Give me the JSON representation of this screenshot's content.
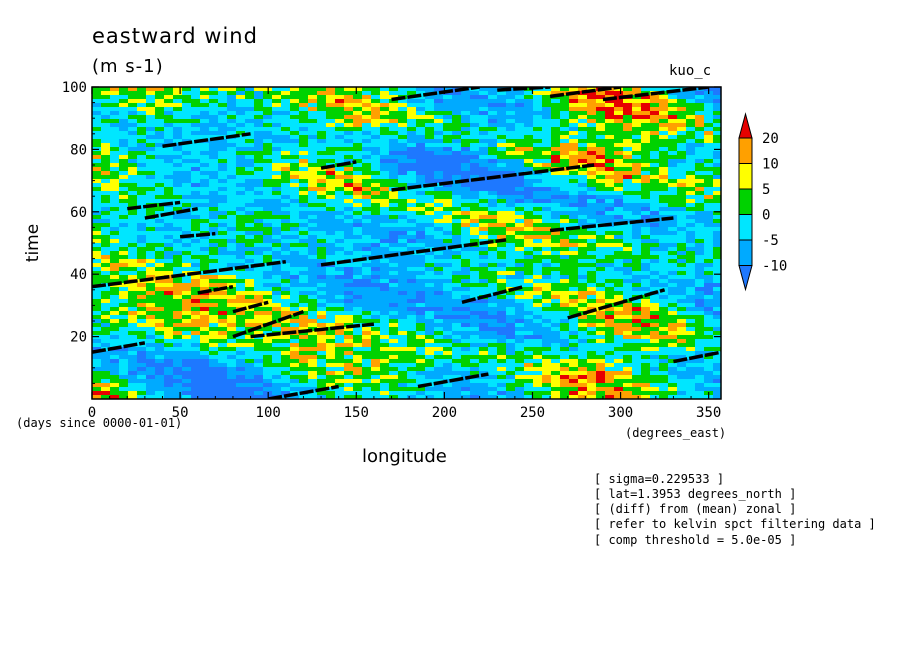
{
  "chart_data": {
    "type": "heatmap",
    "title": "eastward wind",
    "units": "(m s-1)",
    "model": "kuo_c",
    "xlabel": "longitude",
    "ylabel": "time",
    "x_units": "(degrees_east)",
    "time_units": "(days since 0000-01-01)",
    "xlim": [
      0,
      357
    ],
    "ylim": [
      0,
      100
    ],
    "x_ticks": [
      0,
      50,
      100,
      150,
      200,
      250,
      300,
      350
    ],
    "y_ticks": [
      20,
      40,
      60,
      80,
      100
    ],
    "colorbar": {
      "levels": [
        -10,
        -5,
        0,
        5,
        10,
        20
      ],
      "colors": [
        "#1e78ff",
        "#00aaff",
        "#00e6ff",
        "#00d200",
        "#ffff00",
        "#ffa000",
        "#e60000"
      ]
    },
    "overlay_segments": [
      [
        [
          0,
          15
        ],
        [
          30,
          18
        ]
      ],
      [
        [
          90,
          20
        ],
        [
          160,
          24
        ]
      ],
      [
        [
          100,
          0
        ],
        [
          140,
          4
        ]
      ],
      [
        [
          210,
          31
        ],
        [
          245,
          36
        ]
      ],
      [
        [
          185,
          4
        ],
        [
          225,
          8
        ]
      ],
      [
        [
          270,
          26
        ],
        [
          325,
          35
        ]
      ],
      [
        [
          330,
          12
        ],
        [
          357,
          15
        ]
      ],
      [
        [
          0,
          36
        ],
        [
          110,
          44
        ]
      ],
      [
        [
          130,
          43
        ],
        [
          235,
          51
        ]
      ],
      [
        [
          170,
          67
        ],
        [
          285,
          75
        ]
      ],
      [
        [
          260,
          54
        ],
        [
          330,
          58
        ]
      ],
      [
        [
          20,
          61
        ],
        [
          50,
          63
        ]
      ],
      [
        [
          40,
          81
        ],
        [
          90,
          85
        ]
      ],
      [
        [
          130,
          74
        ],
        [
          150,
          76
        ]
      ],
      [
        [
          170,
          96
        ],
        [
          220,
          100
        ]
      ],
      [
        [
          260,
          97
        ],
        [
          300,
          100
        ]
      ],
      [
        [
          290,
          96
        ],
        [
          350,
          100
        ]
      ],
      [
        [
          80,
          20
        ],
        [
          120,
          28
        ]
      ],
      [
        [
          50,
          52
        ],
        [
          70,
          53
        ]
      ],
      [
        [
          60,
          34
        ],
        [
          80,
          36
        ]
      ],
      [
        [
          30,
          58
        ],
        [
          60,
          61
        ]
      ],
      [
        [
          80,
          28
        ],
        [
          100,
          31
        ]
      ],
      [
        [
          230,
          99
        ],
        [
          260,
          100
        ]
      ]
    ]
  },
  "annotations": [
    "[ sigma=0.229533 ]",
    "[ lat=1.3953 degrees_north ]",
    "[ (diff) from (mean) zonal ]",
    "[ refer to kelvin spct filtering data ]",
    "[ comp threshold = 5.0e-05 ]"
  ]
}
